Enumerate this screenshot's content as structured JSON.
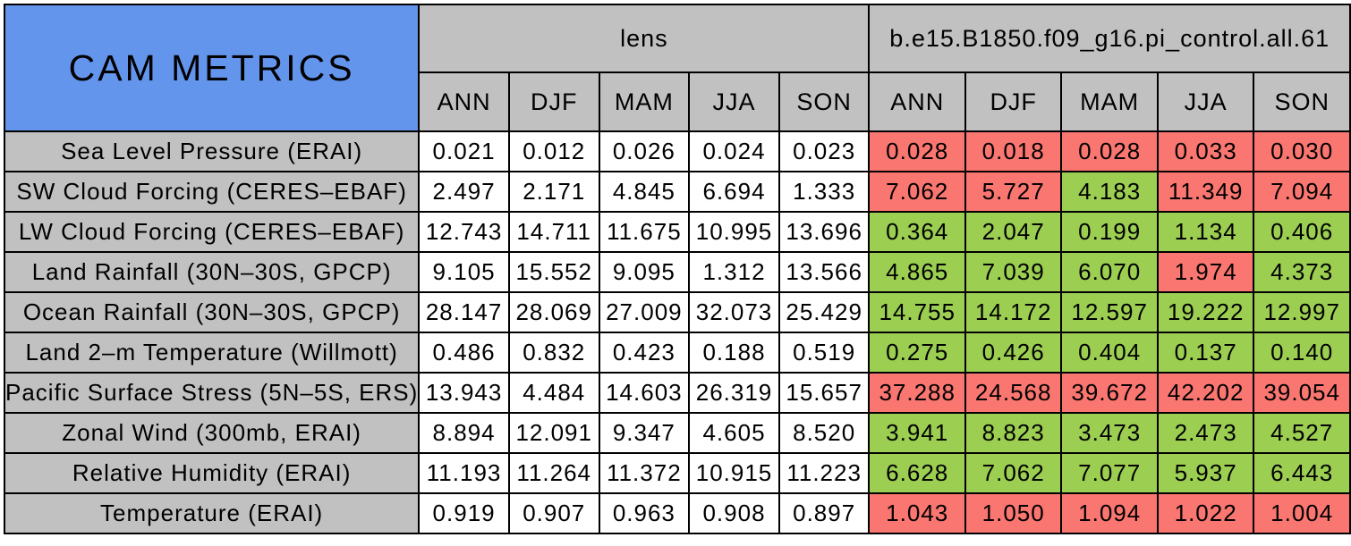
{
  "colors": {
    "title_bg": "#6495ED",
    "header_bg": "#C1C1C1",
    "label_bg": "#C1C1C1",
    "lens_bg": "#FFFFFF",
    "better_bg": "#9CCE52",
    "worse_bg": "#FA7670",
    "border": "#000000"
  },
  "chart_data": {
    "type": "table",
    "title": "CAM METRICS",
    "column_groups": [
      {
        "label": "lens"
      },
      {
        "label": "b.e15.B1850.f09_g16.pi_control.all.61"
      }
    ],
    "season_columns": [
      "ANN",
      "DJF",
      "MAM",
      "JJA",
      "SON"
    ],
    "status_legend": {
      "better": "green",
      "worse": "red"
    },
    "rows": [
      {
        "label": "Sea Level Pressure (ERAI)",
        "lens": [
          "0.021",
          "0.012",
          "0.026",
          "0.024",
          "0.023"
        ],
        "control": [
          "0.028",
          "0.018",
          "0.028",
          "0.033",
          "0.030"
        ],
        "control_status": [
          "worse",
          "worse",
          "worse",
          "worse",
          "worse"
        ]
      },
      {
        "label": "SW Cloud Forcing (CERES–EBAF)",
        "lens": [
          "2.497",
          "2.171",
          "4.845",
          "6.694",
          "1.333"
        ],
        "control": [
          "7.062",
          "5.727",
          "4.183",
          "11.349",
          "7.094"
        ],
        "control_status": [
          "worse",
          "worse",
          "better",
          "worse",
          "worse"
        ]
      },
      {
        "label": "LW Cloud Forcing (CERES–EBAF)",
        "lens": [
          "12.743",
          "14.711",
          "11.675",
          "10.995",
          "13.696"
        ],
        "control": [
          "0.364",
          "2.047",
          "0.199",
          "1.134",
          "0.406"
        ],
        "control_status": [
          "better",
          "better",
          "better",
          "better",
          "better"
        ]
      },
      {
        "label": "Land Rainfall (30N–30S, GPCP)",
        "lens": [
          "9.105",
          "15.552",
          "9.095",
          "1.312",
          "13.566"
        ],
        "control": [
          "4.865",
          "7.039",
          "6.070",
          "1.974",
          "4.373"
        ],
        "control_status": [
          "better",
          "better",
          "better",
          "worse",
          "better"
        ]
      },
      {
        "label": "Ocean Rainfall (30N–30S, GPCP)",
        "lens": [
          "28.147",
          "28.069",
          "27.009",
          "32.073",
          "25.429"
        ],
        "control": [
          "14.755",
          "14.172",
          "12.597",
          "19.222",
          "12.997"
        ],
        "control_status": [
          "better",
          "better",
          "better",
          "better",
          "better"
        ]
      },
      {
        "label": "Land 2–m Temperature (Willmott)",
        "lens": [
          "0.486",
          "0.832",
          "0.423",
          "0.188",
          "0.519"
        ],
        "control": [
          "0.275",
          "0.426",
          "0.404",
          "0.137",
          "0.140"
        ],
        "control_status": [
          "better",
          "better",
          "better",
          "better",
          "better"
        ]
      },
      {
        "label": "Pacific Surface Stress (5N–5S, ERS)",
        "lens": [
          "13.943",
          "4.484",
          "14.603",
          "26.319",
          "15.657"
        ],
        "control": [
          "37.288",
          "24.568",
          "39.672",
          "42.202",
          "39.054"
        ],
        "control_status": [
          "worse",
          "worse",
          "worse",
          "worse",
          "worse"
        ]
      },
      {
        "label": "Zonal Wind (300mb, ERAI)",
        "lens": [
          "8.894",
          "12.091",
          "9.347",
          "4.605",
          "8.520"
        ],
        "control": [
          "3.941",
          "8.823",
          "3.473",
          "2.473",
          "4.527"
        ],
        "control_status": [
          "better",
          "better",
          "better",
          "better",
          "better"
        ]
      },
      {
        "label": "Relative Humidity (ERAI)",
        "lens": [
          "11.193",
          "11.264",
          "11.372",
          "10.915",
          "11.223"
        ],
        "control": [
          "6.628",
          "7.062",
          "7.077",
          "5.937",
          "6.443"
        ],
        "control_status": [
          "better",
          "better",
          "better",
          "better",
          "better"
        ]
      },
      {
        "label": "Temperature (ERAI)",
        "lens": [
          "0.919",
          "0.907",
          "0.963",
          "0.908",
          "0.897"
        ],
        "control": [
          "1.043",
          "1.050",
          "1.094",
          "1.022",
          "1.004"
        ],
        "control_status": [
          "worse",
          "worse",
          "worse",
          "worse",
          "worse"
        ]
      }
    ]
  }
}
